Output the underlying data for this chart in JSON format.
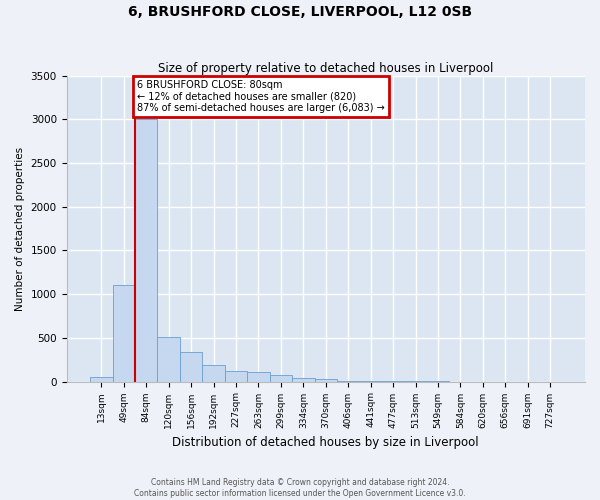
{
  "title1": "6, BRUSHFORD CLOSE, LIVERPOOL, L12 0SB",
  "title2": "Size of property relative to detached houses in Liverpool",
  "xlabel": "Distribution of detached houses by size in Liverpool",
  "ylabel": "Number of detached properties",
  "categories": [
    "13sqm",
    "49sqm",
    "84sqm",
    "120sqm",
    "156sqm",
    "192sqm",
    "227sqm",
    "263sqm",
    "299sqm",
    "334sqm",
    "370sqm",
    "406sqm",
    "441sqm",
    "477sqm",
    "513sqm",
    "549sqm",
    "584sqm",
    "620sqm",
    "656sqm",
    "691sqm",
    "727sqm"
  ],
  "values": [
    55,
    1100,
    3000,
    510,
    340,
    185,
    120,
    110,
    70,
    40,
    25,
    10,
    5,
    3,
    2,
    1,
    0,
    0,
    0,
    0,
    0
  ],
  "bar_color": "#c5d8ef",
  "bar_edge_color": "#6a9fd0",
  "property_line_x": 1.5,
  "annotation_title": "6 BRUSHFORD CLOSE: 80sqm",
  "annotation_line1": "← 12% of detached houses are smaller (820)",
  "annotation_line2": "87% of semi-detached houses are larger (6,083) →",
  "annotation_box_facecolor": "#ffffff",
  "annotation_box_edgecolor": "#cc0000",
  "vline_color": "#cc0000",
  "ylim": [
    0,
    3500
  ],
  "yticks": [
    0,
    500,
    1000,
    1500,
    2000,
    2500,
    3000,
    3500
  ],
  "footer1": "Contains HM Land Registry data © Crown copyright and database right 2024.",
  "footer2": "Contains public sector information licensed under the Open Government Licence v3.0.",
  "fig_bg_color": "#eef2f8",
  "plot_bg_color": "#dce6f2"
}
